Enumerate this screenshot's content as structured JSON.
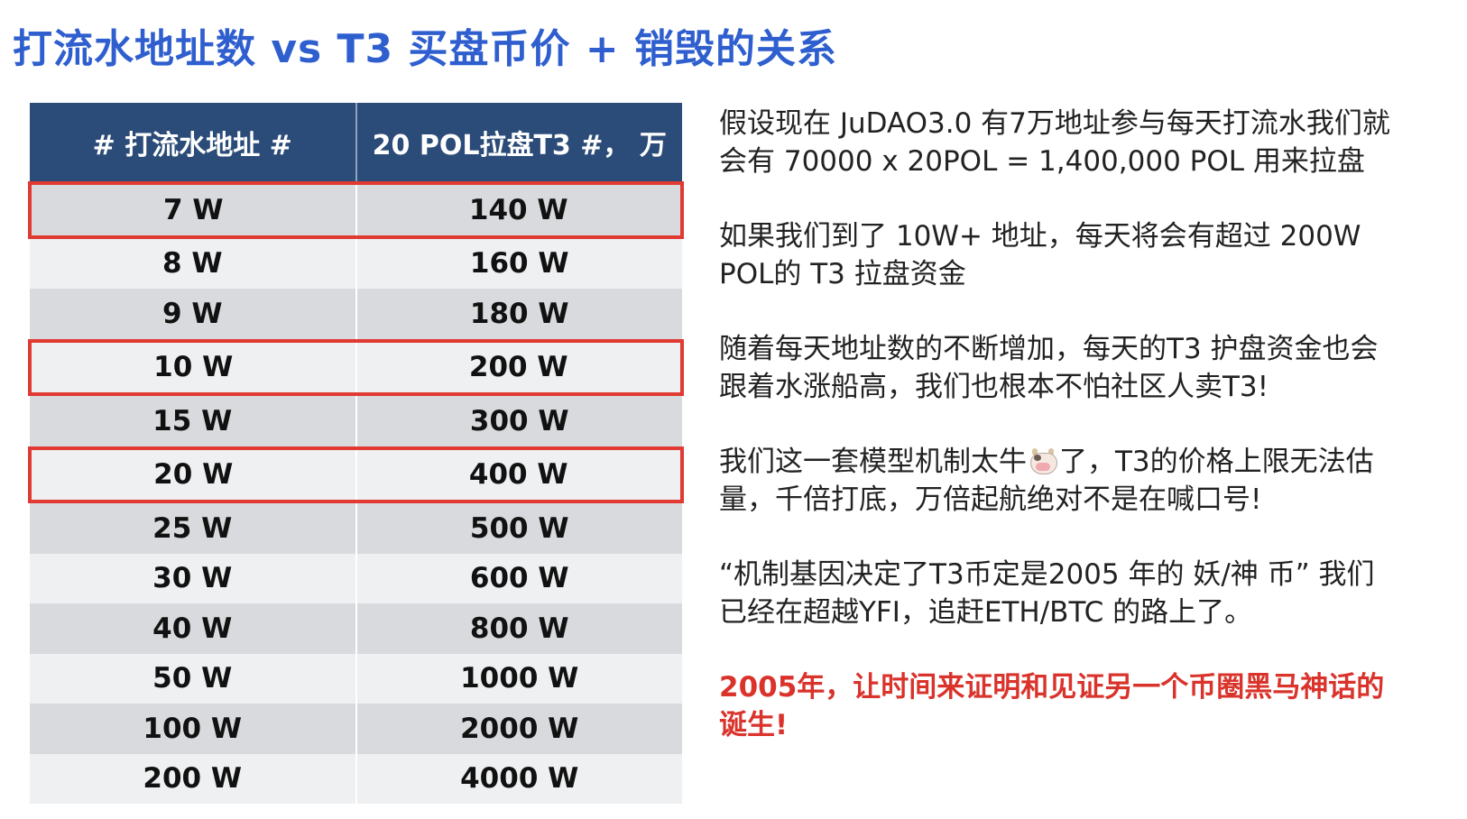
{
  "title": "打流水地址数 vs T3 买盘币价 + 销毁的关系",
  "table": {
    "headers": [
      "# 打流水地址 #",
      "20 POL拉盘T3 #， 万"
    ],
    "rows": [
      [
        "7 W",
        "140 W"
      ],
      [
        "8 W",
        "160 W"
      ],
      [
        "9 W",
        "180 W"
      ],
      [
        "10 W",
        "200 W"
      ],
      [
        "15 W",
        "300 W"
      ],
      [
        "20 W",
        "400 W"
      ],
      [
        "25 W",
        "500 W"
      ],
      [
        "30 W",
        "600 W"
      ],
      [
        "40 W",
        "800 W"
      ],
      [
        "50 W",
        "1000 W"
      ],
      [
        "100 W",
        "2000 W"
      ],
      [
        "200 W",
        "4000 W"
      ]
    ],
    "highlighted_rows": [
      "7 W",
      "10 W",
      "20 W"
    ],
    "highlight_color": "#e03a32",
    "header_color": "#2b4c78"
  },
  "paragraphs": {
    "p1": "假设现在 JuDAO3.0 有7万地址参与每天打流水我们就会有 70000 x 20POL = 1,400,000 POL 用来拉盘",
    "p2": "如果我们到了 10W+ 地址，每天将会有超过 200W POL的 T3 拉盘资金",
    "p3": "随着每天地址数的不断增加，每天的T3 护盘资金也会跟着水涨船高，我们也根本不怕社区人卖T3!",
    "p4_before": "我们这一套模型机制太牛",
    "p4_icon": "cow-icon",
    "p4_after": "了，T3的价格上限无法估量，千倍打底，万倍起航绝对不是在喊口号!",
    "p5": "“机制基因决定了T3币定是2005 年的 妖/神 币” 我们已经在超越YFI，追赶ETH/BTC 的路上了。",
    "p6": "2005年，让时间来证明和见证另一个币圈黑马神话的诞生!"
  },
  "colors": {
    "title": "#2f5fcf",
    "emphasis_red": "#d9332b"
  }
}
